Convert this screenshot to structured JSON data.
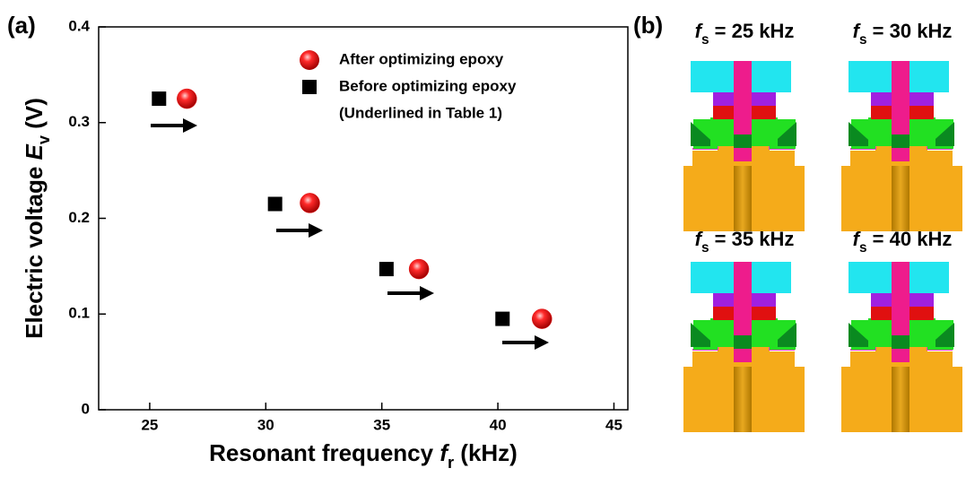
{
  "chart_data": {
    "type": "scatter",
    "panel_label": "(a)",
    "xlabel": {
      "text": "Resonant frequency ",
      "symbol": "f",
      "subscript": "r",
      "unit": " (kHz)"
    },
    "ylabel": {
      "text": "Electric voltage ",
      "symbol": "E",
      "subscript": "v",
      "unit": " (V)"
    },
    "xlim": [
      22.8,
      45.6
    ],
    "xticks": [
      25,
      30,
      35,
      40,
      45
    ],
    "ylim": [
      0,
      0.4
    ],
    "yticks": [
      0,
      0.1,
      0.2,
      0.3,
      0.4
    ],
    "legend": "upper right",
    "legend_note": "(Underlined in Table 1)",
    "series": [
      {
        "name": "After optimizing epoxy",
        "color": "#e81010",
        "marker": "circle",
        "x": [
          26.6,
          31.9,
          36.6,
          41.9
        ],
        "values": [
          0.325,
          0.216,
          0.147,
          0.095
        ]
      },
      {
        "name": "Before optimizing epoxy",
        "color": "#000000",
        "marker": "square",
        "x": [
          25.4,
          30.4,
          35.2,
          40.2
        ],
        "values": [
          0.325,
          0.215,
          0.147,
          0.095
        ]
      }
    ]
  },
  "panel_b": {
    "label": "(b)",
    "images": [
      {
        "symbol": "f",
        "subscript": "s",
        "text": " = 25 kHz"
      },
      {
        "symbol": "f",
        "subscript": "s",
        "text": " = 30 kHz"
      },
      {
        "symbol": "f",
        "subscript": "s",
        "text": " = 35 kHz"
      },
      {
        "symbol": "f",
        "subscript": "s",
        "text": " = 40 kHz"
      }
    ]
  }
}
